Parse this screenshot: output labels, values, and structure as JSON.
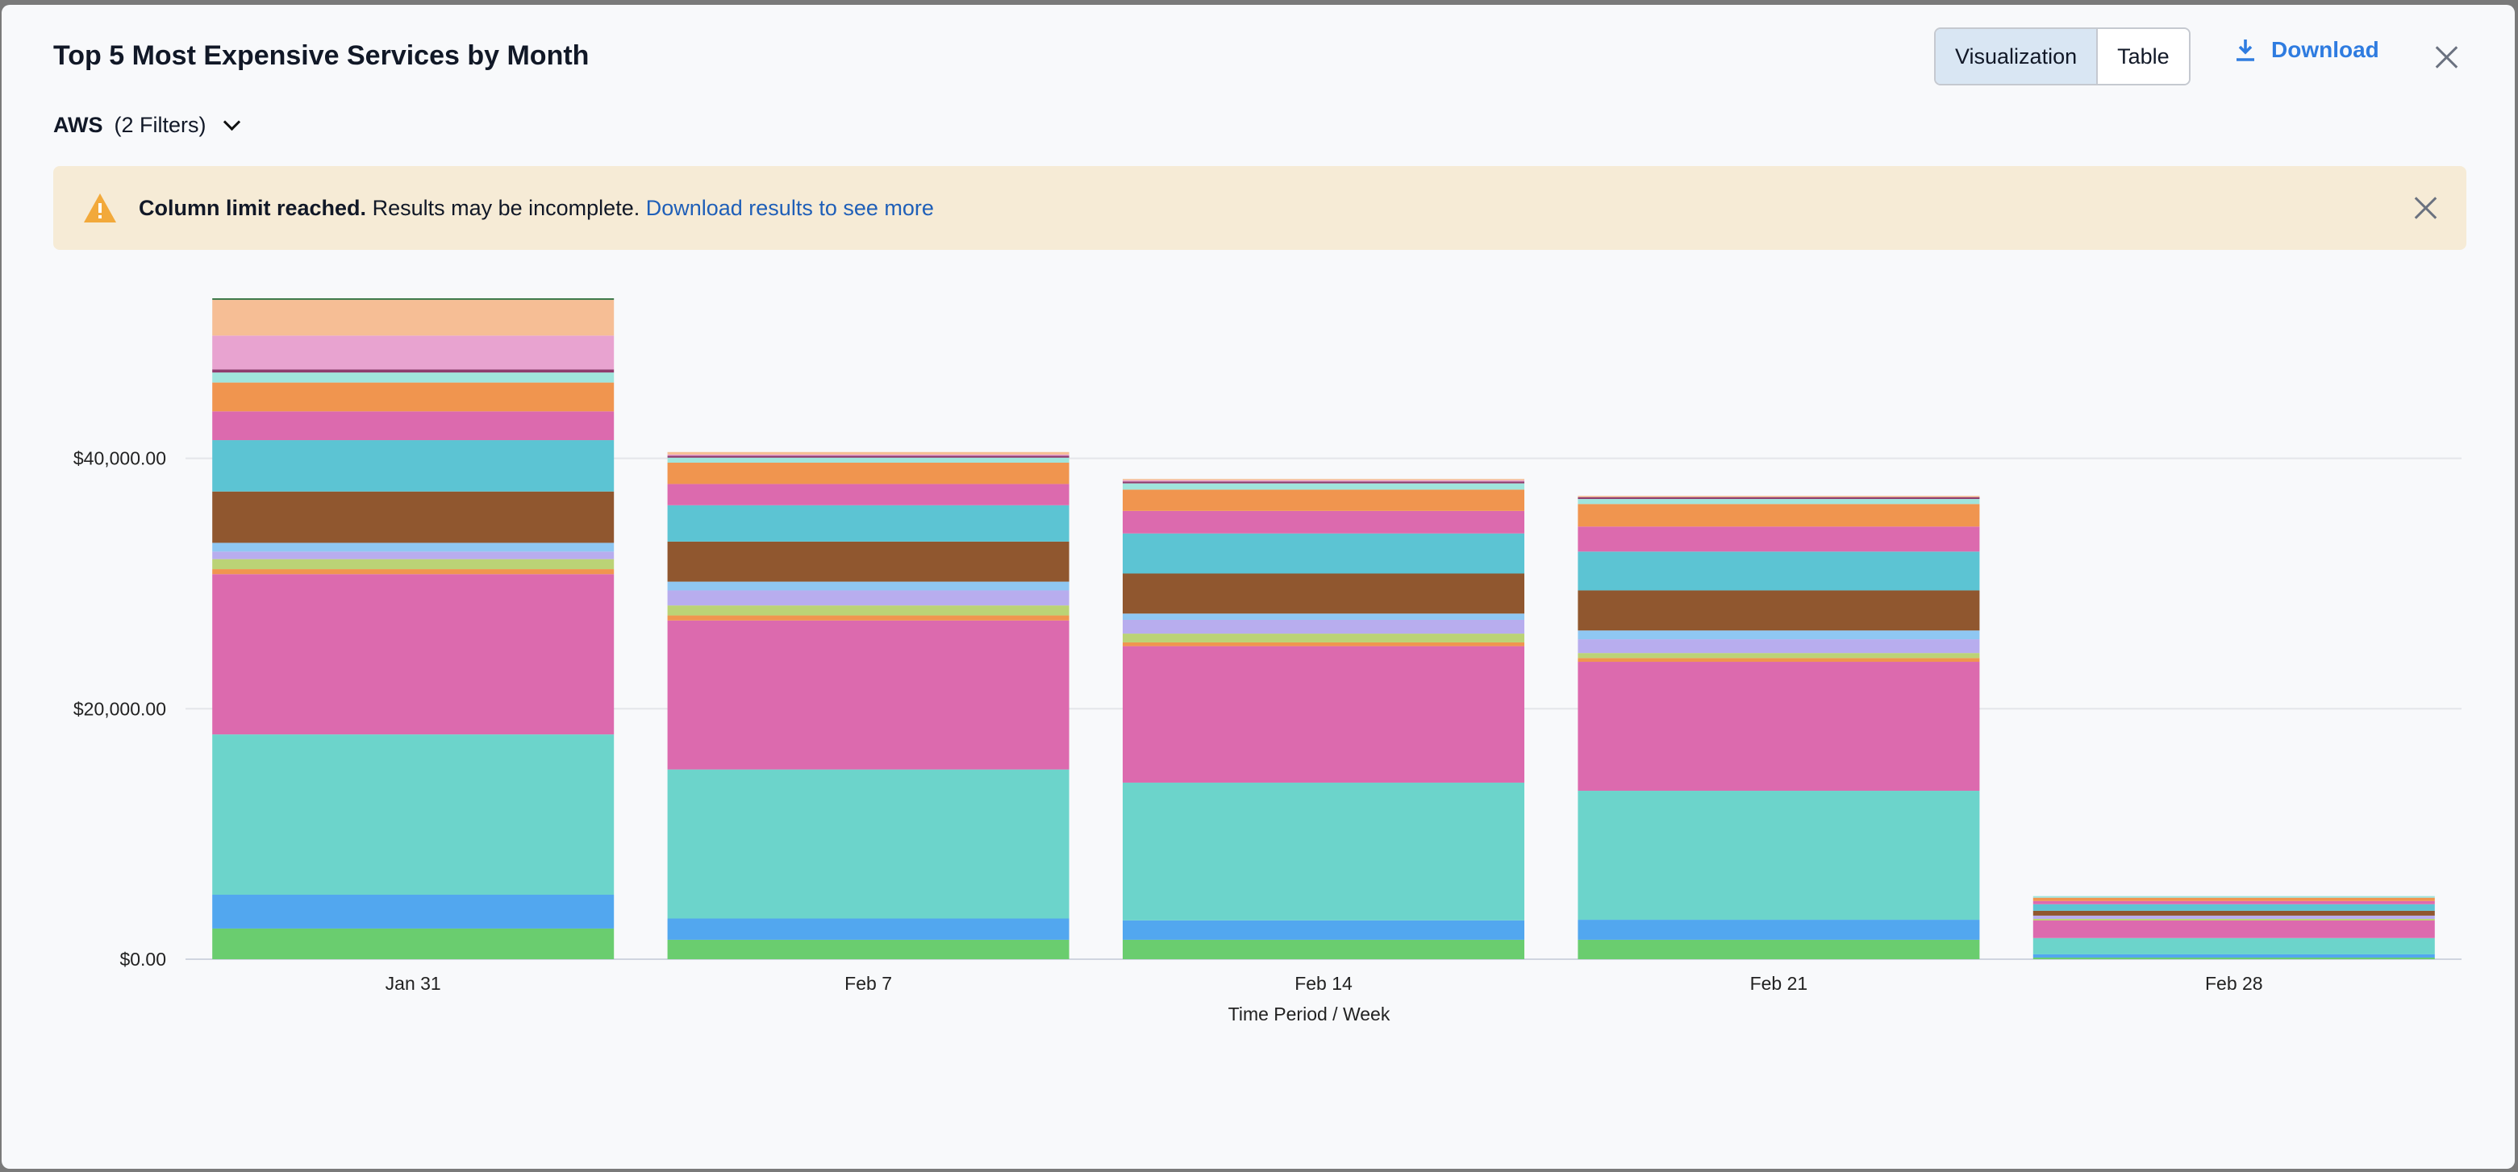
{
  "window": {
    "title": "Top 5 Most Expensive Services by Month"
  },
  "filter": {
    "source": "AWS",
    "count_label": "(2 Filters)"
  },
  "view_toggle": {
    "options": [
      "Visualization",
      "Table"
    ],
    "selected": "Visualization"
  },
  "download_label": "Download",
  "banner": {
    "bold": "Column limit reached.",
    "text": " Results may be incomplete. ",
    "link": "Download results to see more",
    "icon": "warning-icon"
  },
  "chart_data": {
    "type": "bar",
    "stacked": true,
    "title": "",
    "xlabel": "Time Period / Week",
    "ylabel": "",
    "categories": [
      "Jan 31",
      "Feb 7",
      "Feb 14",
      "Feb 21",
      "Feb 28"
    ],
    "yticks": [
      0,
      20000,
      40000
    ],
    "ytick_labels": [
      "$0.00",
      "$20,000.00",
      "$40,000.00"
    ],
    "ylim": [
      0,
      56000
    ],
    "grid": true,
    "series": [
      {
        "color": "#6acd6f",
        "values": [
          2450,
          1550,
          1550,
          1550,
          130
        ]
      },
      {
        "color": "#52a7ef",
        "values": [
          2700,
          1700,
          1550,
          1600,
          260
        ]
      },
      {
        "color": "#6cd4cb",
        "values": [
          12800,
          11900,
          11000,
          10300,
          1300
        ]
      },
      {
        "color": "#dc6aae",
        "values": [
          12800,
          11900,
          10900,
          10300,
          1400
        ]
      },
      {
        "color": "#f0954f",
        "values": [
          400,
          400,
          300,
          300,
          0
        ]
      },
      {
        "color": "#bbd376",
        "values": [
          800,
          800,
          700,
          400,
          130
        ]
      },
      {
        "color": "#b8adee",
        "values": [
          600,
          1200,
          1100,
          1100,
          260
        ]
      },
      {
        "color": "#8fc7f2",
        "values": [
          700,
          700,
          500,
          700,
          0
        ]
      },
      {
        "color": "#90572f",
        "values": [
          4100,
          3200,
          3200,
          3200,
          390
        ]
      },
      {
        "color": "#5cc4d3",
        "values": [
          4100,
          2900,
          3200,
          3100,
          520
        ]
      },
      {
        "color": "#dc6aae",
        "values": [
          2300,
          1700,
          1800,
          2000,
          260
        ]
      },
      {
        "color": "#f0954f",
        "values": [
          2300,
          1700,
          1700,
          1800,
          260
        ]
      },
      {
        "color": "#a0e5dd",
        "values": [
          800,
          400,
          500,
          400,
          130
        ]
      },
      {
        "color": "#8e3c6e",
        "values": [
          250,
          150,
          150,
          150,
          0
        ]
      },
      {
        "color": "#e8a3d0",
        "values": [
          2700,
          100,
          100,
          0,
          0
        ]
      },
      {
        "color": "#f6be95",
        "values": [
          2850,
          200,
          100,
          100,
          0
        ]
      },
      {
        "color": "#3d7a4b",
        "values": [
          130,
          0,
          0,
          0,
          0
        ]
      }
    ]
  }
}
